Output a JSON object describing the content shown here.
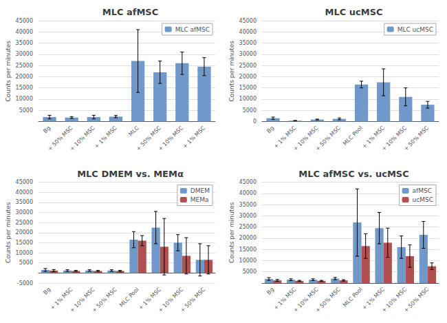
{
  "chart_data": [
    {
      "type": "bar",
      "title": "MLC afMSC",
      "categories": [
        "Bg",
        "+ 50% MSC",
        "+ 10% MSC",
        "+ 1% MSC",
        "MLC",
        "+ 50% MSC",
        "+ 10% MSC",
        "+ 1% MSC"
      ],
      "series": [
        {
          "name": "MLC afMSC",
          "color": "#7098C8",
          "values": [
            2000,
            1800,
            2000,
            2200,
            27000,
            22000,
            26000,
            24500
          ],
          "errors": [
            800,
            400,
            800,
            500,
            14000,
            5000,
            5000,
            4000
          ]
        }
      ],
      "ylabel": "Counts per minutes",
      "ylim": [
        0,
        45000
      ],
      "yticks": [
        {
          "value": 0,
          "label": ""
        },
        5000,
        10000,
        15000,
        20000,
        25000,
        30000,
        35000,
        40000,
        45000
      ],
      "grid": true,
      "legend": "upper right"
    },
    {
      "type": "bar",
      "title": "MLC ucMSC",
      "categories": [
        "Bg",
        "+ 1% MSC",
        "+ 10% MSC",
        "+ 50% MSC",
        "MLC Pool",
        "+ 1% MSC",
        "+ 10% MSC",
        "+ 50% MSC"
      ],
      "series": [
        {
          "name": "MLC ucMSC",
          "color": "#7098C8",
          "values": [
            1500,
            400,
            900,
            1200,
            16500,
            17500,
            11000,
            7500
          ],
          "errors": [
            500,
            100,
            200,
            400,
            1500,
            6000,
            4000,
            1500
          ]
        }
      ],
      "ylabel": "Counts per minutes",
      "ylim": [
        0,
        45000
      ],
      "yticks": [
        0,
        5000,
        10000,
        15000,
        20000,
        25000,
        30000,
        35000,
        40000,
        45000
      ],
      "grid": true,
      "legend": "upper right"
    },
    {
      "type": "bar",
      "title": "MLC DMEM vs. MEMα",
      "categories": [
        "Bg",
        "+ 1% MSC",
        "+ 10% MSC",
        "+ 50% MSC",
        "MLC Pool",
        "+ 1% MSC",
        "+ 10% MSC",
        "+ 50% MSC"
      ],
      "series": [
        {
          "name": "DMEM",
          "color": "#7098C8",
          "values": [
            1500,
            1200,
            1200,
            1200,
            16500,
            22500,
            15000,
            6500
          ],
          "errors": [
            700,
            400,
            400,
            400,
            4000,
            8000,
            4000,
            8000
          ]
        },
        {
          "name": "MEMa",
          "color": "#B05050",
          "values": [
            1200,
            1000,
            1000,
            1000,
            16000,
            13000,
            8500,
            6500
          ],
          "errors": [
            500,
            300,
            300,
            300,
            2500,
            14000,
            9000,
            7000
          ]
        }
      ],
      "ylabel": "Counts per minutes",
      "ylim": [
        -5000,
        45000
      ],
      "yticks": [
        -5000,
        {
          "value": 0,
          "label": ""
        },
        5000,
        10000,
        15000,
        20000,
        25000,
        30000,
        35000,
        40000,
        45000
      ],
      "grid": true,
      "legend": "upper right"
    },
    {
      "type": "bar",
      "title": "MLC afMSC vs. ucMSC",
      "categories": [
        "Bg",
        "+ 1% MSC",
        "+ 10% MSC",
        "+ 50% MSC",
        "MLC Pool",
        "+ 1% MSC",
        "+ 10% MSC",
        "+ 50% MSC"
      ],
      "series": [
        {
          "name": "afMSC",
          "color": "#7098C8",
          "values": [
            1800,
            1500,
            1500,
            2000,
            27000,
            24500,
            16000,
            21500
          ],
          "errors": [
            600,
            400,
            400,
            500,
            15000,
            7000,
            5000,
            6000
          ]
        },
        {
          "name": "ucMSC",
          "color": "#B05050",
          "values": [
            1200,
            1000,
            1000,
            1200,
            16500,
            18000,
            12000,
            7500
          ],
          "errors": [
            400,
            200,
            200,
            300,
            5500,
            6500,
            5000,
            1500
          ]
        }
      ],
      "ylabel": "Counts per minutes",
      "ylim": [
        0,
        45000
      ],
      "yticks": [
        {
          "value": 0,
          "label": ""
        },
        5000,
        10000,
        15000,
        20000,
        25000,
        30000,
        35000,
        40000,
        45000
      ],
      "grid": true,
      "legend": "upper right"
    }
  ]
}
